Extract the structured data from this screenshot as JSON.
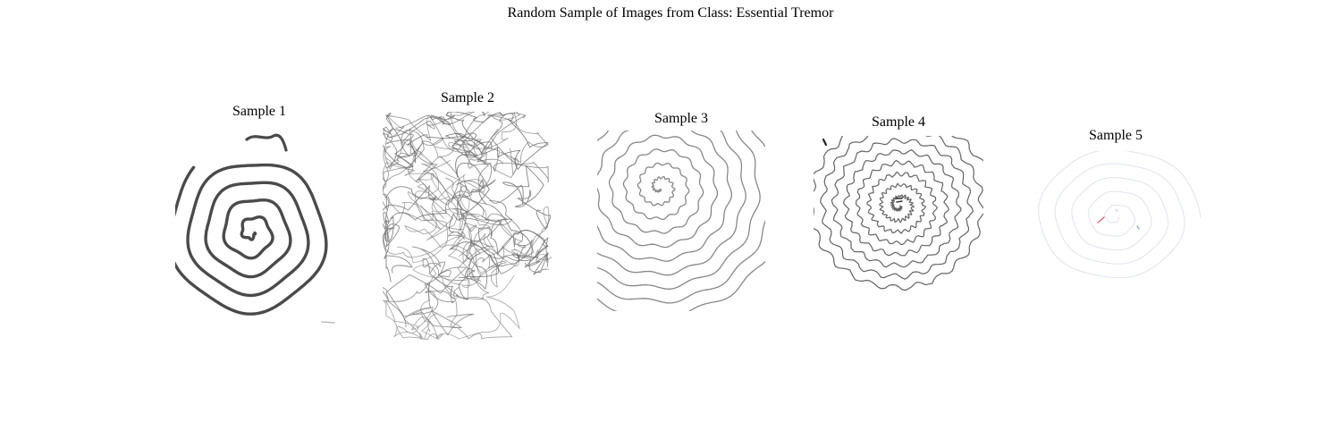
{
  "figure": {
    "title": "Random Sample of Images from Class: Essential Tremor"
  },
  "samples": [
    {
      "title": "Sample 1",
      "stroke": "#4a4a4a",
      "description": "thick dark wavy spiral"
    },
    {
      "title": "Sample 2",
      "stroke": "#6e6e6e",
      "description": "dense chaotic scribble"
    },
    {
      "title": "Sample 3",
      "stroke": "#7a7a7a",
      "description": "wavy concentric spiral"
    },
    {
      "title": "Sample 4",
      "stroke": "#5a5a5a",
      "description": "jagged tremor spiral"
    },
    {
      "title": "Sample 5",
      "stroke": "#dde0ea",
      "description": "very faint spiral with red marks"
    }
  ]
}
